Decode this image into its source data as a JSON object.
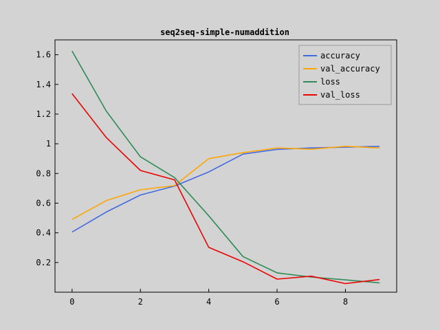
{
  "chart_data": {
    "type": "line",
    "title": "seq2seq-simple-numaddition",
    "xlabel": "",
    "ylabel": "",
    "x": [
      0,
      1,
      2,
      3,
      4,
      5,
      6,
      7,
      8,
      9
    ],
    "xlim": [
      -0.5,
      9.5
    ],
    "ylim": [
      0.0,
      1.7
    ],
    "xticks": [
      0,
      2,
      4,
      6,
      8
    ],
    "yticks": [
      0.2,
      0.4,
      0.6,
      0.8,
      1.0,
      1.2,
      1.4,
      1.6
    ],
    "ytick_labels": [
      "0.2",
      "0.4",
      "0.6",
      "0.8",
      "1",
      "1.2",
      "1.4",
      "1.6"
    ],
    "grid": false,
    "legend_position": "top-right",
    "series": [
      {
        "name": "accuracy",
        "color": "#4169e1",
        "values": [
          0.405,
          0.54,
          0.655,
          0.715,
          0.81,
          0.93,
          0.962,
          0.972,
          0.977,
          0.983
        ]
      },
      {
        "name": "val_accuracy",
        "color": "#ffa500",
        "values": [
          0.49,
          0.617,
          0.69,
          0.718,
          0.9,
          0.94,
          0.972,
          0.963,
          0.983,
          0.972
        ]
      },
      {
        "name": "loss",
        "color": "#2e8b57",
        "values": [
          1.625,
          1.22,
          0.912,
          0.772,
          0.515,
          0.24,
          0.13,
          0.102,
          0.083,
          0.063
        ]
      },
      {
        "name": "val_loss",
        "color": "#ee0000",
        "values": [
          1.338,
          1.042,
          0.82,
          0.757,
          0.302,
          0.205,
          0.088,
          0.108,
          0.058,
          0.085
        ]
      }
    ]
  }
}
